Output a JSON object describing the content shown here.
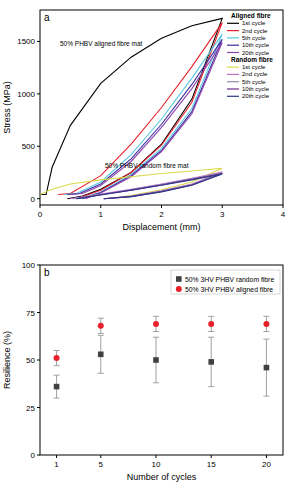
{
  "chart_data": [
    {
      "type": "line",
      "title": "a",
      "xlabel": "Displacement (mm)",
      "ylabel": "Stress (MPa)",
      "xlim": [
        0,
        4
      ],
      "ylim": [
        -60,
        1800
      ],
      "xticks": [
        0,
        1,
        2,
        3,
        4
      ],
      "yticks": [
        0,
        500,
        1000,
        1500
      ],
      "legend": "upper right",
      "annotations": [
        "50% PHBV aligned fibre mat",
        "50% PHBV random fibre mat"
      ],
      "series": [
        {
          "group": "Aligned fibre",
          "name": "1st cycle",
          "color": "#000000",
          "x": [
            0,
            0.1,
            0.2,
            0.5,
            1,
            1.5,
            2,
            2.5,
            3,
            2.5,
            2,
            1.5,
            1,
            0.7,
            0.45
          ],
          "values": [
            40,
            40,
            300,
            700,
            1100,
            1350,
            1530,
            1650,
            1720,
            950,
            520,
            250,
            90,
            25,
            0
          ]
        },
        {
          "group": "Aligned fibre",
          "name": "2nd cycle",
          "color": "#e8202a",
          "x": [
            0.3,
            0.5,
            1,
            1.5,
            2,
            2.5,
            3,
            2.5,
            2,
            1.5,
            1,
            0.6
          ],
          "values": [
            40,
            50,
            220,
            520,
            870,
            1260,
            1680,
            920,
            510,
            250,
            80,
            0
          ]
        },
        {
          "group": "Aligned fibre",
          "name": "5th cycle",
          "color": "#58c8e0",
          "x": [
            0.4,
            0.6,
            1,
            1.5,
            2,
            2.5,
            3,
            2.5,
            2,
            1.5,
            1,
            0.65
          ],
          "values": [
            40,
            50,
            160,
            420,
            760,
            1150,
            1570,
            860,
            480,
            230,
            65,
            0
          ]
        },
        {
          "group": "Aligned fibre",
          "name": "10th cycle",
          "color": "#3b2e9e",
          "x": [
            0.45,
            0.65,
            1,
            1.5,
            2,
            2.5,
            3,
            2.5,
            2,
            1.5,
            1,
            0.7
          ],
          "values": [
            40,
            50,
            140,
            380,
            710,
            1090,
            1520,
            830,
            460,
            220,
            60,
            0
          ]
        },
        {
          "group": "Aligned fibre",
          "name": "20th cycle",
          "color": "#8e44ad",
          "x": [
            0.5,
            0.7,
            1,
            1.5,
            2,
            2.5,
            3,
            2.5,
            2,
            1.5,
            1,
            0.75
          ],
          "values": [
            40,
            50,
            125,
            355,
            680,
            1050,
            1490,
            810,
            450,
            210,
            55,
            0
          ]
        },
        {
          "group": "Random fibre",
          "name": "1st cycle",
          "color": "#d9d94a",
          "x": [
            0,
            0.2,
            0.5,
            1,
            1.5,
            2,
            2.5,
            3,
            2.5,
            2,
            1.5,
            1.1
          ],
          "values": [
            40,
            90,
            140,
            180,
            210,
            240,
            265,
            290,
            160,
            85,
            30,
            0
          ]
        },
        {
          "group": "Random fibre",
          "name": "2nd cycle",
          "color": "#c070c8",
          "x": [
            0.5,
            1,
            1.5,
            2,
            2.5,
            3,
            2.5,
            2,
            1.5,
            1.05
          ],
          "values": [
            0,
            45,
            90,
            140,
            195,
            255,
            140,
            75,
            25,
            0
          ]
        },
        {
          "group": "Random fibre",
          "name": "5th cycle",
          "color": "#8d8db0",
          "x": [
            0.55,
            1,
            1.5,
            2,
            2.5,
            3,
            2.5,
            2,
            1.5,
            1.05
          ],
          "values": [
            0,
            40,
            85,
            135,
            190,
            245,
            135,
            70,
            22,
            0
          ]
        },
        {
          "group": "Random fibre",
          "name": "10th cycle",
          "color": "#6a2c8a",
          "x": [
            0.6,
            1,
            1.5,
            2,
            2.5,
            3,
            2.5,
            2,
            1.5,
            1.05
          ],
          "values": [
            0,
            38,
            82,
            130,
            185,
            240,
            130,
            68,
            20,
            0
          ]
        },
        {
          "group": "Random fibre",
          "name": "20th cycle",
          "color": "#2e3a8a",
          "x": [
            0.6,
            1,
            1.5,
            2,
            2.5,
            3,
            2.5,
            2,
            1.5,
            1.05
          ],
          "values": [
            0,
            35,
            80,
            128,
            180,
            235,
            128,
            65,
            20,
            0
          ]
        }
      ]
    },
    {
      "type": "scatter",
      "title": "b",
      "xlabel": "Number of cycles",
      "ylabel": "Resilience (%)",
      "xlim": [
        -0.5,
        21.5
      ],
      "ylim": [
        0,
        100
      ],
      "xticks": [
        1,
        5,
        10,
        15,
        20
      ],
      "yticks": [
        0,
        25,
        50,
        75,
        100
      ],
      "legend": "upper right",
      "x": [
        1,
        5,
        10,
        15,
        20
      ],
      "series": [
        {
          "name": "50% 3HV PHBV random fibre",
          "color": "#404040",
          "marker": "square",
          "values": [
            36,
            53,
            50,
            49,
            46
          ],
          "errors": [
            6,
            10,
            12,
            13,
            15
          ]
        },
        {
          "name": "50% 3HV PHBV aligned fibre",
          "color": "#e8202a",
          "marker": "circle",
          "values": [
            51,
            68,
            69,
            69,
            69
          ],
          "errors": [
            4,
            4,
            4,
            4,
            4
          ]
        }
      ]
    }
  ]
}
